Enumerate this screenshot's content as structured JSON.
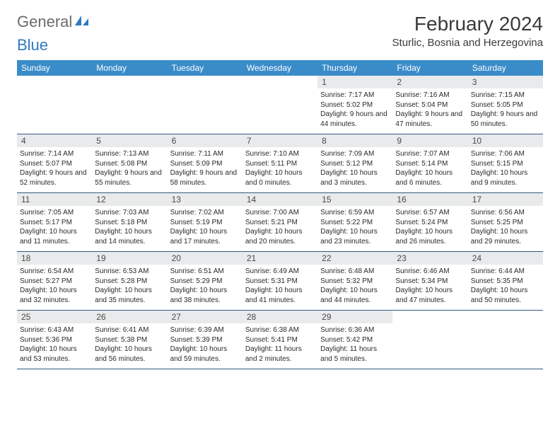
{
  "logo": {
    "general": "General",
    "blue": "Blue"
  },
  "title": "February 2024",
  "location": "Sturlic, Bosnia and Herzegovina",
  "weekdays": [
    "Sunday",
    "Monday",
    "Tuesday",
    "Wednesday",
    "Thursday",
    "Friday",
    "Saturday"
  ],
  "colors": {
    "header_bg": "#3a8cc9",
    "daynum_bg": "#e9eaeb",
    "row_border": "#2f5a80",
    "logo_gray": "#6b6b6b",
    "logo_blue": "#2f7ac0"
  },
  "days": [
    {
      "n": "1",
      "sunrise": "7:17 AM",
      "sunset": "5:02 PM",
      "daylight": "9 hours and 44 minutes."
    },
    {
      "n": "2",
      "sunrise": "7:16 AM",
      "sunset": "5:04 PM",
      "daylight": "9 hours and 47 minutes."
    },
    {
      "n": "3",
      "sunrise": "7:15 AM",
      "sunset": "5:05 PM",
      "daylight": "9 hours and 50 minutes."
    },
    {
      "n": "4",
      "sunrise": "7:14 AM",
      "sunset": "5:07 PM",
      "daylight": "9 hours and 52 minutes."
    },
    {
      "n": "5",
      "sunrise": "7:13 AM",
      "sunset": "5:08 PM",
      "daylight": "9 hours and 55 minutes."
    },
    {
      "n": "6",
      "sunrise": "7:11 AM",
      "sunset": "5:09 PM",
      "daylight": "9 hours and 58 minutes."
    },
    {
      "n": "7",
      "sunrise": "7:10 AM",
      "sunset": "5:11 PM",
      "daylight": "10 hours and 0 minutes."
    },
    {
      "n": "8",
      "sunrise": "7:09 AM",
      "sunset": "5:12 PM",
      "daylight": "10 hours and 3 minutes."
    },
    {
      "n": "9",
      "sunrise": "7:07 AM",
      "sunset": "5:14 PM",
      "daylight": "10 hours and 6 minutes."
    },
    {
      "n": "10",
      "sunrise": "7:06 AM",
      "sunset": "5:15 PM",
      "daylight": "10 hours and 9 minutes."
    },
    {
      "n": "11",
      "sunrise": "7:05 AM",
      "sunset": "5:17 PM",
      "daylight": "10 hours and 11 minutes."
    },
    {
      "n": "12",
      "sunrise": "7:03 AM",
      "sunset": "5:18 PM",
      "daylight": "10 hours and 14 minutes."
    },
    {
      "n": "13",
      "sunrise": "7:02 AM",
      "sunset": "5:19 PM",
      "daylight": "10 hours and 17 minutes."
    },
    {
      "n": "14",
      "sunrise": "7:00 AM",
      "sunset": "5:21 PM",
      "daylight": "10 hours and 20 minutes."
    },
    {
      "n": "15",
      "sunrise": "6:59 AM",
      "sunset": "5:22 PM",
      "daylight": "10 hours and 23 minutes."
    },
    {
      "n": "16",
      "sunrise": "6:57 AM",
      "sunset": "5:24 PM",
      "daylight": "10 hours and 26 minutes."
    },
    {
      "n": "17",
      "sunrise": "6:56 AM",
      "sunset": "5:25 PM",
      "daylight": "10 hours and 29 minutes."
    },
    {
      "n": "18",
      "sunrise": "6:54 AM",
      "sunset": "5:27 PM",
      "daylight": "10 hours and 32 minutes."
    },
    {
      "n": "19",
      "sunrise": "6:53 AM",
      "sunset": "5:28 PM",
      "daylight": "10 hours and 35 minutes."
    },
    {
      "n": "20",
      "sunrise": "6:51 AM",
      "sunset": "5:29 PM",
      "daylight": "10 hours and 38 minutes."
    },
    {
      "n": "21",
      "sunrise": "6:49 AM",
      "sunset": "5:31 PM",
      "daylight": "10 hours and 41 minutes."
    },
    {
      "n": "22",
      "sunrise": "6:48 AM",
      "sunset": "5:32 PM",
      "daylight": "10 hours and 44 minutes."
    },
    {
      "n": "23",
      "sunrise": "6:46 AM",
      "sunset": "5:34 PM",
      "daylight": "10 hours and 47 minutes."
    },
    {
      "n": "24",
      "sunrise": "6:44 AM",
      "sunset": "5:35 PM",
      "daylight": "10 hours and 50 minutes."
    },
    {
      "n": "25",
      "sunrise": "6:43 AM",
      "sunset": "5:36 PM",
      "daylight": "10 hours and 53 minutes."
    },
    {
      "n": "26",
      "sunrise": "6:41 AM",
      "sunset": "5:38 PM",
      "daylight": "10 hours and 56 minutes."
    },
    {
      "n": "27",
      "sunrise": "6:39 AM",
      "sunset": "5:39 PM",
      "daylight": "10 hours and 59 minutes."
    },
    {
      "n": "28",
      "sunrise": "6:38 AM",
      "sunset": "5:41 PM",
      "daylight": "11 hours and 2 minutes."
    },
    {
      "n": "29",
      "sunrise": "6:36 AM",
      "sunset": "5:42 PM",
      "daylight": "11 hours and 5 minutes."
    }
  ],
  "layout": {
    "start_weekday_index": 4,
    "columns": 7
  }
}
